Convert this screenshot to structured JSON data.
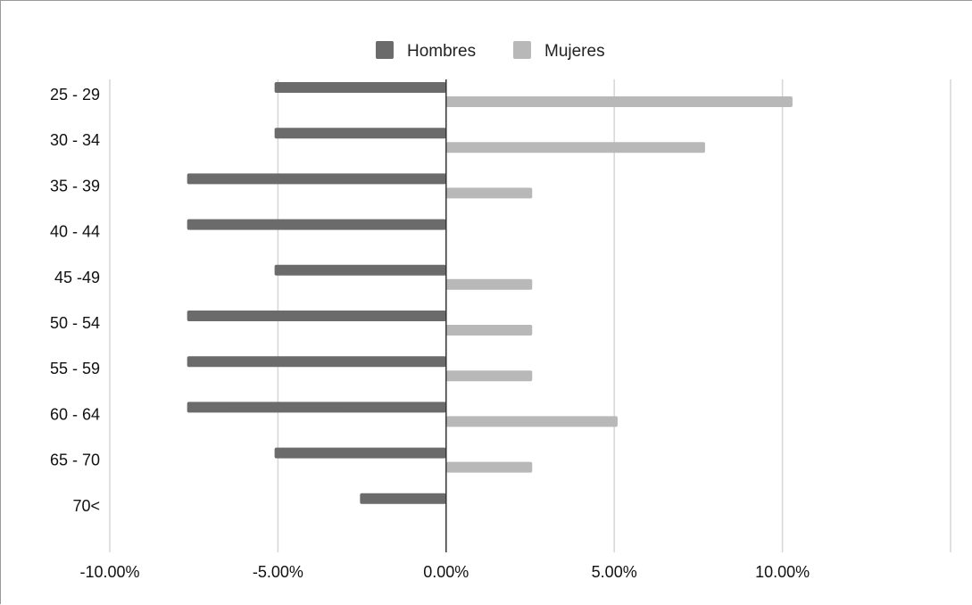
{
  "chart_data": {
    "type": "bar",
    "orientation": "horizontal",
    "categories": [
      "25 - 29",
      "30 - 34",
      "35 - 39",
      "40 - 44",
      "45 -49",
      "50 - 54",
      "55 - 59",
      "60 - 64",
      "65 - 70",
      "70<"
    ],
    "series": [
      {
        "name": "Hombres",
        "color": "#6b6b6b",
        "values": [
          -5.1,
          -5.1,
          -7.7,
          -7.7,
          -5.1,
          -7.7,
          -7.7,
          -7.7,
          -5.1,
          -2.56
        ]
      },
      {
        "name": "Mujeres",
        "color": "#b8b8b8",
        "values": [
          10.3,
          7.7,
          2.56,
          0,
          2.56,
          2.56,
          2.56,
          5.1,
          2.56,
          0
        ]
      }
    ],
    "xlim": [
      -10,
      15
    ],
    "xticks": [
      -10,
      -5,
      0,
      5,
      10
    ],
    "xtick_labels": [
      "-10.00%",
      "-5.00%",
      "0.00%",
      "5.00%",
      "10.00%"
    ],
    "grid": true,
    "legend_position": "top"
  }
}
